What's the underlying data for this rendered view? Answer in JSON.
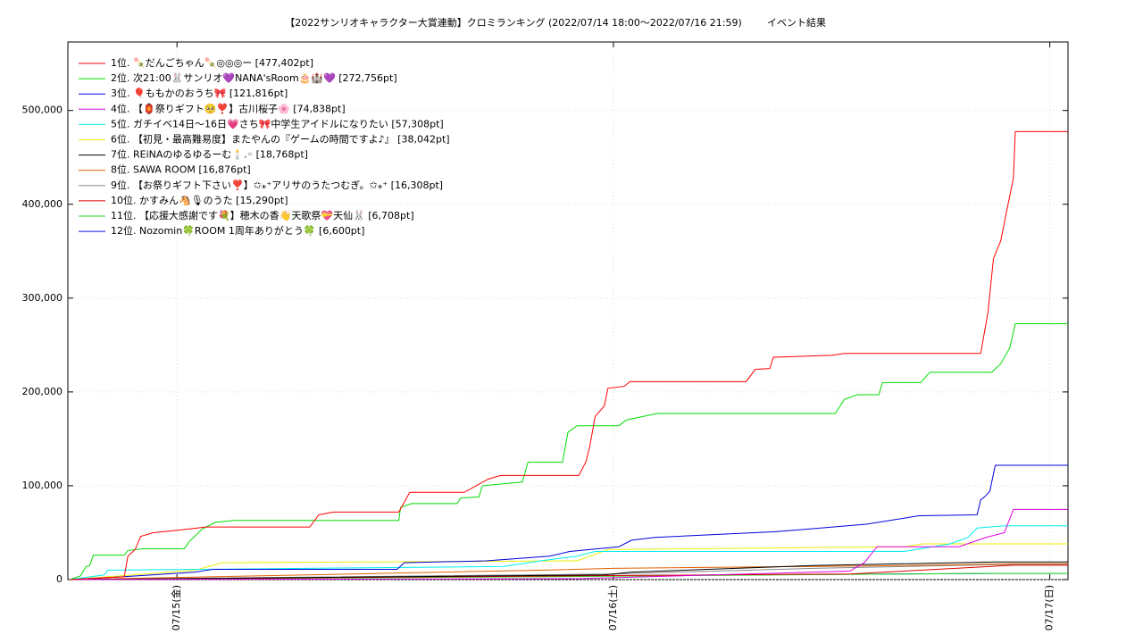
{
  "chart_data": {
    "type": "line",
    "title": "【2022サンリオキャラクター大賞連動】クロミランキング (2022/07/14 18:00〜2022/07/16 21:59)",
    "subtitle": "イベント結果",
    "xlim": [
      -6,
      49
    ],
    "ylim": [
      0,
      573000
    ],
    "xticks": [
      {
        "value": 0,
        "label": "07/15(金)"
      },
      {
        "value": 24,
        "label": "07/16(土)"
      },
      {
        "value": 48,
        "label": "07/17(日)"
      }
    ],
    "yticks": [
      0,
      {
        "value": 100000,
        "label": "100,000"
      },
      {
        "value": 200000,
        "label": "200,000"
      },
      {
        "value": 300000,
        "label": "300,000"
      },
      {
        "value": 400000,
        "label": "400,000"
      },
      {
        "value": 500000,
        "label": "500,000"
      }
    ],
    "grid": true,
    "legend": "top-left",
    "series": [
      {
        "name": "1位. 🍡だんごちゃん🍡◎◎◎ー [477,402pt]",
        "color": "#ff0000",
        "x": [
          -5.9,
          -2.9,
          -2.7,
          -2.3,
          -2.0,
          -1.3,
          0.2,
          1.6,
          7.3,
          7.8,
          8.6,
          12.2,
          12.8,
          15.8,
          17.1,
          17.8,
          22.1,
          22.5,
          22.7,
          23.0,
          23.5,
          23.7,
          24.6,
          24.9,
          31.3,
          31.8,
          32.6,
          32.8,
          36.0,
          36.7,
          44.2,
          44.6,
          44.9,
          45.3,
          45.6,
          46.0,
          46.1,
          49
        ],
        "values": [
          0,
          3000,
          25000,
          32000,
          46000,
          50000,
          53000,
          56000,
          56000,
          69000,
          72000,
          72000,
          93000,
          93000,
          107000,
          111000,
          111000,
          126000,
          142000,
          174000,
          185000,
          204000,
          206000,
          211000,
          211000,
          224000,
          225000,
          237000,
          239000,
          241000,
          241000,
          285000,
          342000,
          361000,
          390000,
          428000,
          477402,
          477402
        ]
      },
      {
        "name": "2位. 次21:00🐰サンリオ💜NANA'sRoom🎂🏰💜 [272,756pt]",
        "color": "#00dd00",
        "x": [
          -5.9,
          -5.3,
          -5.0,
          -4.8,
          -4.6,
          -2.9,
          -2.7,
          -1.8,
          0.4,
          0.7,
          1.4,
          2.1,
          3.1,
          12.2,
          12.3,
          12.9,
          15.4,
          15.6,
          16.6,
          16.8,
          19.0,
          19.3,
          21.2,
          21.5,
          22.0,
          24.3,
          24.7,
          26.4,
          36.2,
          36.7,
          37.4,
          38.6,
          38.8,
          40.9,
          41.4,
          44.8,
          45.3,
          45.8,
          46.1,
          49
        ],
        "values": [
          0,
          4000,
          14000,
          15000,
          26000,
          26000,
          31000,
          33000,
          33000,
          41000,
          54000,
          61000,
          63000,
          63000,
          77000,
          81000,
          81000,
          87000,
          88000,
          100000,
          104000,
          125000,
          125000,
          157000,
          164000,
          164000,
          170000,
          177000,
          177000,
          192000,
          197000,
          197000,
          210000,
          210000,
          221000,
          221000,
          230000,
          247000,
          272756,
          272756
        ]
      },
      {
        "name": "3位. 🎈ももかのおうち🎀 [121,816pt]",
        "color": "#0000dd",
        "x": [
          -5.9,
          -3,
          1.0,
          2,
          12.1,
          12.5,
          17,
          20.5,
          21.6,
          24.3,
          25,
          26.3,
          32.9,
          37.9,
          40.8,
          44.0,
          44.2,
          44.4,
          44.7,
          45.0,
          49
        ],
        "values": [
          0,
          3000,
          8000,
          11000,
          11000,
          18000,
          20000,
          25000,
          30000,
          35000,
          42000,
          45000,
          51000,
          59000,
          68000,
          69000,
          85000,
          88000,
          94000,
          121816,
          121816
        ]
      },
      {
        "name": "4位. 【🏮祭りギフト🥺❣️】古川桜子🌸 [74,838pt]",
        "color": "#dd00dd",
        "x": [
          -5.9,
          22,
          37,
          37.8,
          38.5,
          43,
          44.5,
          45.5,
          46.0,
          49
        ],
        "values": [
          0,
          1000,
          9000,
          18000,
          35000,
          35000,
          45000,
          50000,
          74838,
          74838
        ]
      },
      {
        "name": "5位. ガチイベ14日〜16日💗さち🎀中学生アイドルになりたい [57,308pt]",
        "color": "#00eeee",
        "x": [
          -5.9,
          -4,
          -3.8,
          18,
          20,
          22,
          23,
          40,
          42.5,
          43.5,
          44,
          45.5,
          49
        ],
        "values": [
          0,
          5000,
          10000,
          14000,
          20000,
          25000,
          30000,
          30000,
          38000,
          45000,
          55000,
          57308,
          57308
        ]
      },
      {
        "name": "6位. 【初見・最高難易度】またやんの『ゲームの時間ですよ♪』 [38,042pt]",
        "color": "#eeee00",
        "x": [
          -5.9,
          1.0,
          2.5,
          22,
          23.7,
          40,
          41,
          49
        ],
        "values": [
          0,
          10000,
          18000,
          20000,
          32000,
          35000,
          38042,
          38042
        ]
      },
      {
        "name": "7位. REiNAのゆるゆるーむ🕯️.◦ [18,768pt]",
        "color": "#000000",
        "x": [
          -5.9,
          23.5,
          25,
          35,
          45,
          49
        ],
        "values": [
          0,
          5000,
          8000,
          15000,
          18768,
          18768
        ]
      },
      {
        "name": "8位. SAWA ROOM [16,876pt]",
        "color": "#e06000",
        "x": [
          -5.9,
          20,
          24,
          40,
          46.0,
          49
        ],
        "values": [
          0,
          10000,
          12000,
          15000,
          16876,
          16876
        ]
      },
      {
        "name": "9位. 【お祭りギフト下さい❣️】✩⁎⁺アリサのうたつむぎ。✩⁎⁺ [16,308pt]",
        "color": "#888888",
        "x": [
          -5.9,
          24,
          35,
          46.0,
          49
        ],
        "values": [
          0,
          6000,
          12000,
          16308,
          16308
        ]
      },
      {
        "name": "10位. かすみん🐴🎙のうた [15,290pt]",
        "color": "#dd0000",
        "x": [
          -5.9,
          22,
          37,
          46.0,
          49
        ],
        "values": [
          0,
          4000,
          6000,
          15290,
          15290
        ]
      },
      {
        "name": "11位. 【応援大感謝です💐】穂木の香👋天歌祭💝天仙🐰 [6,708pt]",
        "color": "#22dd22",
        "x": [
          -5.9,
          20,
          45,
          49
        ],
        "values": [
          0,
          3000,
          6708,
          6708
        ]
      },
      {
        "name": "12位. Nozomin🍀ROOM 1周年ありがとう🍀 [6,600pt]",
        "color": "#1010ee",
        "x": [
          -5.9,
          22,
          45,
          49
        ],
        "values": [
          0,
          4000,
          6600,
          6600
        ]
      }
    ]
  }
}
